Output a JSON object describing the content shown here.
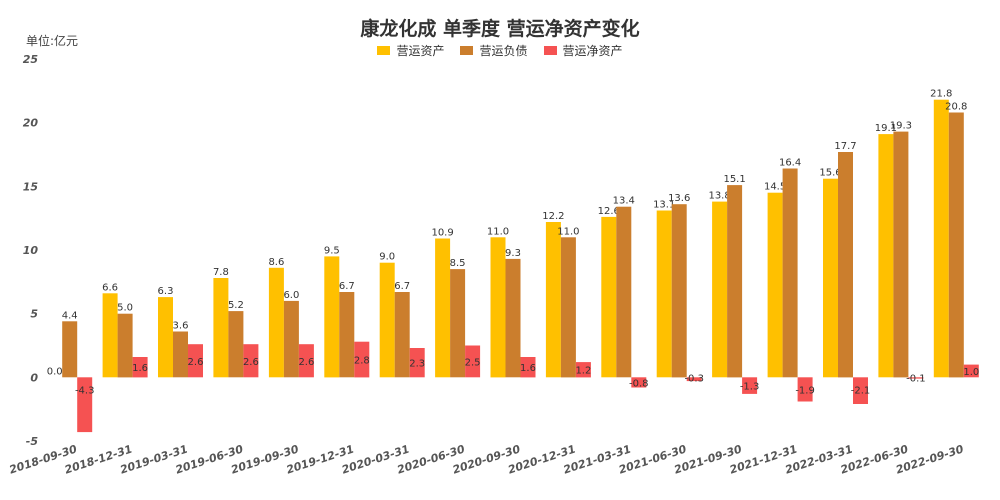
{
  "chart_data": {
    "type": "bar",
    "title": "康龙化成 单季度 营运净资产变化",
    "ylabel": "单位:亿元",
    "xlabel": "",
    "ylim": [
      -5,
      25
    ],
    "yticks": [
      "-5",
      "0",
      "5",
      "10",
      "15",
      "20",
      "25"
    ],
    "categories": [
      "2018-09-30",
      "2018-12-31",
      "2019-03-31",
      "2019-06-30",
      "2019-09-30",
      "2019-12-31",
      "2020-03-31",
      "2020-06-30",
      "2020-09-30",
      "2020-12-31",
      "2021-03-31",
      "2021-06-30",
      "2021-09-30",
      "2021-12-31",
      "2022-03-31",
      "2022-06-30",
      "2022-09-30"
    ],
    "series": [
      {
        "name": "营运资产",
        "color": "#FFC000",
        "values": [
          0.0,
          6.6,
          6.3,
          7.8,
          8.6,
          9.5,
          9.0,
          10.9,
          11.0,
          12.2,
          12.6,
          13.1,
          13.8,
          14.5,
          15.6,
          19.1,
          21.8
        ],
        "labels": [
          "0.0",
          "6.6",
          "6.3",
          "7.8",
          "8.6",
          "9.5",
          "9.0",
          "10.9",
          "11.0",
          "12.2",
          "12.6",
          "13.1",
          "13.8",
          "14.5",
          "15.6",
          "19.1",
          "21.8"
        ]
      },
      {
        "name": "营运负债",
        "color": "#CB7E2D",
        "values": [
          4.4,
          5.0,
          3.6,
          5.2,
          6.0,
          6.7,
          6.7,
          8.5,
          9.3,
          11.0,
          13.4,
          13.6,
          15.1,
          16.4,
          17.7,
          19.3,
          20.8
        ],
        "labels": [
          "4.4",
          "5.0",
          "3.6",
          "5.2",
          "6.0",
          "6.7",
          "6.7",
          "8.5",
          "9.3",
          "11.0",
          "13.4",
          "13.6",
          "15.1",
          "16.4",
          "17.7",
          "19.3",
          "20.8"
        ]
      },
      {
        "name": "营运净资产",
        "color": "#F55252",
        "values": [
          -4.3,
          1.6,
          2.6,
          2.6,
          2.6,
          2.8,
          2.3,
          2.5,
          1.6,
          1.2,
          -0.8,
          -0.3,
          -1.3,
          -1.9,
          -2.1,
          -0.1,
          1.0
        ],
        "labels": [
          "-4.3",
          "1.6",
          "2.6",
          "2.6",
          "2.6",
          "2.8",
          "2.3",
          "2.5",
          "1.6",
          "1.2",
          "-0.8",
          "-0.3",
          "-1.3",
          "-1.9",
          "-2.1",
          "-0.1",
          "1.0"
        ]
      }
    ]
  }
}
